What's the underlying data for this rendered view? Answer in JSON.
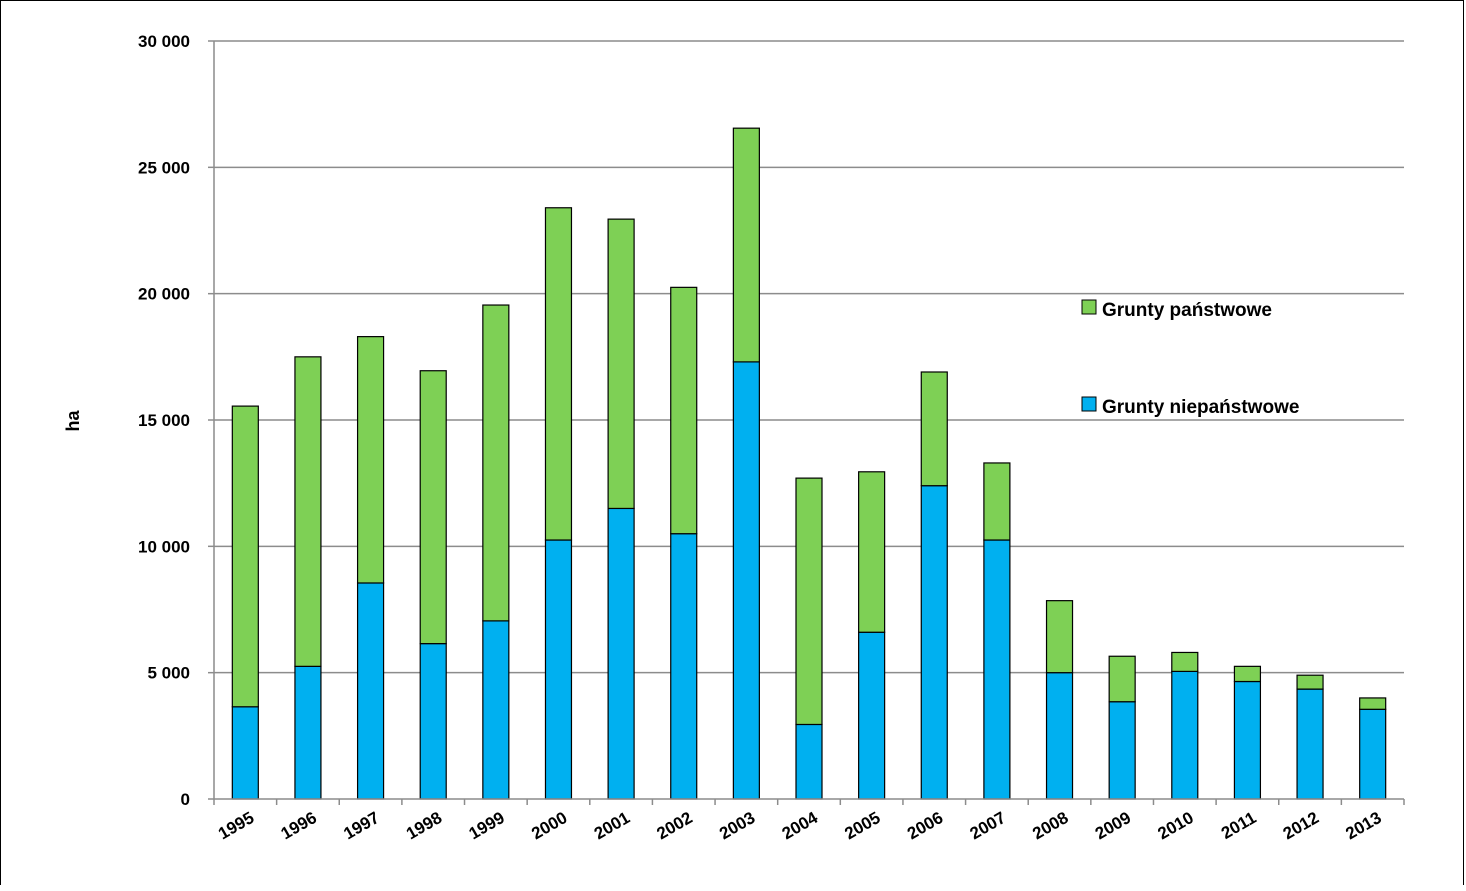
{
  "chart_data": {
    "type": "bar",
    "stacked": true,
    "ylabel": "ha",
    "ylim": [
      0,
      30000
    ],
    "yticks": [
      0,
      5000,
      10000,
      15000,
      20000,
      25000,
      30000
    ],
    "ytick_labels": [
      "0",
      "5 000",
      "10 000",
      "15 000",
      "20 000",
      "25 000",
      "30 000"
    ],
    "grid": true,
    "legend_position": "right",
    "categories": [
      "1995",
      "1996",
      "1997",
      "1998",
      "1999",
      "2000",
      "2001",
      "2002",
      "2003",
      "2004",
      "2005",
      "2006",
      "2007",
      "2008",
      "2009",
      "2010",
      "2011",
      "2012",
      "2013"
    ],
    "series": [
      {
        "name": "Grunty niepaństwowe",
        "color": "#00B0F0",
        "values": [
          3650,
          5250,
          8550,
          6150,
          7050,
          10250,
          11500,
          10500,
          17300,
          2950,
          6600,
          12400,
          10250,
          5000,
          3850,
          5050,
          4650,
          4350,
          3550
        ]
      },
      {
        "name": "Grunty państwowe",
        "color": "#7ED055",
        "values": [
          11900,
          12250,
          9750,
          10800,
          12500,
          13150,
          11450,
          9750,
          9250,
          9750,
          6350,
          4500,
          3050,
          2850,
          1800,
          750,
          600,
          550,
          450
        ]
      }
    ]
  }
}
